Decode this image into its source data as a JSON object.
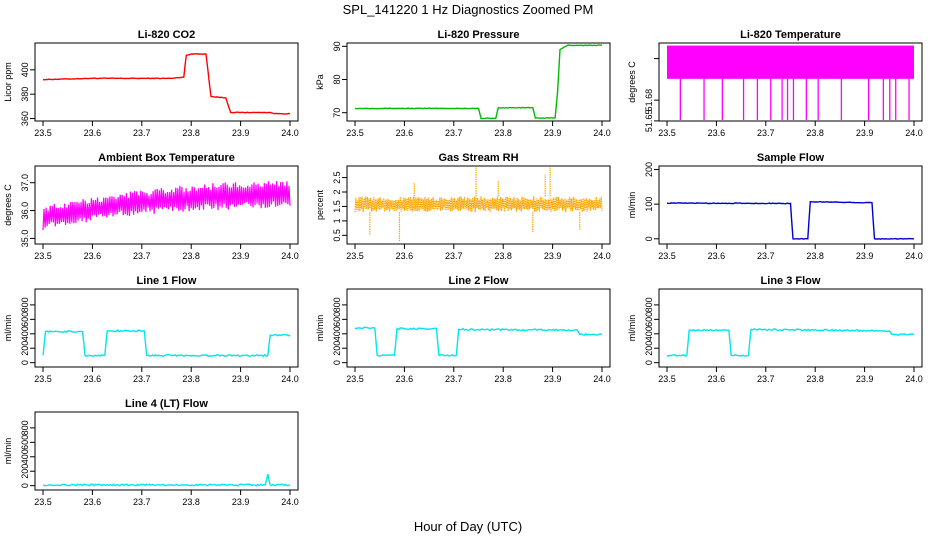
{
  "title": "SPL_141220  1 Hz Diagnostics Zoomed PM",
  "xlabel": "Hour of Day (UTC)",
  "chart_data": [
    {
      "type": "line",
      "title": "Li-820 CO2",
      "ylabel": "Licor ppm",
      "color": "#ff0000",
      "xlim": [
        23.5,
        24.0
      ],
      "ylim": [
        358,
        422
      ],
      "xticks": [
        23.5,
        23.6,
        23.7,
        23.8,
        23.9,
        24.0
      ],
      "yticks": [
        360,
        380,
        400
      ],
      "x": [
        23.5,
        23.6,
        23.7,
        23.76,
        23.785,
        23.79,
        23.8,
        23.83,
        23.84,
        23.87,
        23.88,
        23.95,
        23.96,
        23.97,
        24.0
      ],
      "y": [
        392,
        393,
        393,
        393,
        394,
        412,
        413,
        413,
        378,
        377,
        365,
        365,
        365,
        364,
        364
      ]
    },
    {
      "type": "line",
      "title": "Li-820 Pressure",
      "ylabel": "kPa",
      "color": "#00bb00",
      "xlim": [
        23.5,
        24.0
      ],
      "ylim": [
        67.5,
        91
      ],
      "xticks": [
        23.5,
        23.6,
        23.7,
        23.8,
        23.9,
        24.0
      ],
      "yticks": [
        70,
        80,
        90
      ],
      "x": [
        23.5,
        23.75,
        23.755,
        23.785,
        23.79,
        23.86,
        23.865,
        23.905,
        23.91,
        23.915,
        23.93,
        24.0
      ],
      "y": [
        71.3,
        71.3,
        68.3,
        68.3,
        71.5,
        71.5,
        68.4,
        68.4,
        76.0,
        89.0,
        90.3,
        90.3
      ]
    },
    {
      "type": "area",
      "title": "Li-820 Temperature",
      "ylabel": "degrees C",
      "color": "#ff00ff",
      "xlim": [
        23.5,
        24.0
      ],
      "ylim": [
        51.64995,
        51.6875
      ],
      "xticks": [
        23.5,
        23.6,
        23.7,
        23.8,
        23.9,
        24.0
      ],
      "yticks": [
        51.65,
        51.66,
        51.68
      ],
      "ytick_labels": [
        "51.65",
        "51.68"
      ],
      "band": [
        51.67025,
        51.68625
      ],
      "spikes_x": [
        23.527,
        23.575,
        23.612,
        23.655,
        23.683,
        23.71,
        23.733,
        23.744,
        23.756,
        23.782,
        23.806,
        23.853,
        23.908,
        23.938,
        23.951,
        23.963,
        23.99
      ]
    },
    {
      "type": "area",
      "title": "Ambient Box Temperature",
      "ylabel": "degrees C",
      "color": "#ff00ff",
      "xlim": [
        23.5,
        24.0
      ],
      "ylim": [
        34.8,
        37.6
      ],
      "xticks": [
        23.5,
        23.6,
        23.7,
        23.8,
        23.9,
        24.0
      ],
      "yticks": [
        35.0,
        36.0,
        37.0
      ],
      "x": [
        23.5,
        23.6,
        23.7,
        23.8,
        23.9,
        24.0
      ],
      "lower": [
        35.3,
        35.6,
        35.85,
        35.95,
        36.05,
        36.1
      ],
      "upper": [
        36.2,
        36.5,
        36.75,
        36.95,
        37.05,
        37.1
      ]
    },
    {
      "type": "area",
      "title": "Gas Stream RH",
      "ylabel": "percent",
      "color": "#ffa500",
      "xlim": [
        23.5,
        24.0
      ],
      "ylim": [
        0.2,
        2.9
      ],
      "xticks": [
        23.5,
        23.6,
        23.7,
        23.8,
        23.9,
        24.0
      ],
      "yticks": [
        0.5,
        1.0,
        1.5,
        2.0,
        2.5
      ],
      "band": [
        1.3,
        1.85
      ],
      "spikes": [
        [
          23.53,
          0.5
        ],
        [
          23.59,
          0.3
        ],
        [
          23.62,
          2.3
        ],
        [
          23.745,
          2.85
        ],
        [
          23.79,
          2.4
        ],
        [
          23.86,
          0.6
        ],
        [
          23.885,
          2.6
        ],
        [
          23.895,
          2.85
        ],
        [
          23.955,
          0.7
        ]
      ]
    },
    {
      "type": "line",
      "title": "Sample Flow",
      "ylabel": "ml/min",
      "color": "#0000cc",
      "xlim": [
        23.5,
        24.0
      ],
      "ylim": [
        -15,
        210
      ],
      "xticks": [
        23.5,
        23.6,
        23.7,
        23.8,
        23.9,
        24.0
      ],
      "yticks": [
        0,
        100,
        200
      ],
      "x": [
        23.5,
        23.75,
        23.755,
        23.785,
        23.79,
        23.915,
        23.92,
        24.0
      ],
      "y": [
        103,
        102,
        0,
        0,
        107,
        104,
        0,
        0
      ]
    },
    {
      "type": "line",
      "title": "Line 1 Flow",
      "ylabel": "ml/min",
      "color": "#00e5ee",
      "xlim": [
        23.5,
        24.0
      ],
      "ylim": [
        -60,
        1020
      ],
      "xticks": [
        23.5,
        23.6,
        23.7,
        23.8,
        23.9,
        24.0
      ],
      "yticks": [
        0,
        200,
        400,
        600,
        800
      ],
      "x": [
        23.5,
        23.505,
        23.58,
        23.585,
        23.625,
        23.63,
        23.705,
        23.71,
        23.955,
        23.96,
        24.0
      ],
      "y": [
        100,
        430,
        430,
        100,
        100,
        440,
        440,
        100,
        100,
        380,
        380
      ]
    },
    {
      "type": "line",
      "title": "Line 2 Flow",
      "ylabel": "ml/min",
      "color": "#00e5ee",
      "xlim": [
        23.5,
        24.0
      ],
      "ylim": [
        -60,
        1020
      ],
      "xticks": [
        23.5,
        23.6,
        23.7,
        23.8,
        23.9,
        24.0
      ],
      "yticks": [
        0,
        200,
        400,
        600,
        800
      ],
      "x": [
        23.5,
        23.54,
        23.545,
        23.58,
        23.585,
        23.665,
        23.67,
        23.705,
        23.71,
        23.95,
        23.955,
        24.0
      ],
      "y": [
        480,
        480,
        100,
        100,
        470,
        470,
        100,
        100,
        460,
        450,
        390,
        390
      ]
    },
    {
      "type": "line",
      "title": "Line 3 Flow",
      "ylabel": "ml/min",
      "color": "#00e5ee",
      "xlim": [
        23.5,
        24.0
      ],
      "ylim": [
        -60,
        1020
      ],
      "xticks": [
        23.5,
        23.6,
        23.7,
        23.8,
        23.9,
        24.0
      ],
      "yticks": [
        0,
        200,
        400,
        600,
        800
      ],
      "x": [
        23.5,
        23.505,
        23.54,
        23.545,
        23.625,
        23.63,
        23.665,
        23.67,
        23.95,
        23.955,
        24.0
      ],
      "y": [
        100,
        100,
        100,
        450,
        450,
        100,
        100,
        460,
        440,
        390,
        390
      ]
    },
    {
      "type": "line",
      "title": "Line 4 (LT) Flow",
      "ylabel": "ml/min",
      "color": "#00e5ee",
      "xlim": [
        23.5,
        24.0
      ],
      "ylim": [
        -60,
        1020
      ],
      "xticks": [
        23.5,
        23.6,
        23.7,
        23.8,
        23.9,
        24.0
      ],
      "yticks": [
        0,
        200,
        400,
        600,
        800
      ],
      "x": [
        23.5,
        23.95,
        23.955,
        23.96,
        24.0
      ],
      "y": [
        10,
        10,
        160,
        10,
        10
      ]
    }
  ]
}
